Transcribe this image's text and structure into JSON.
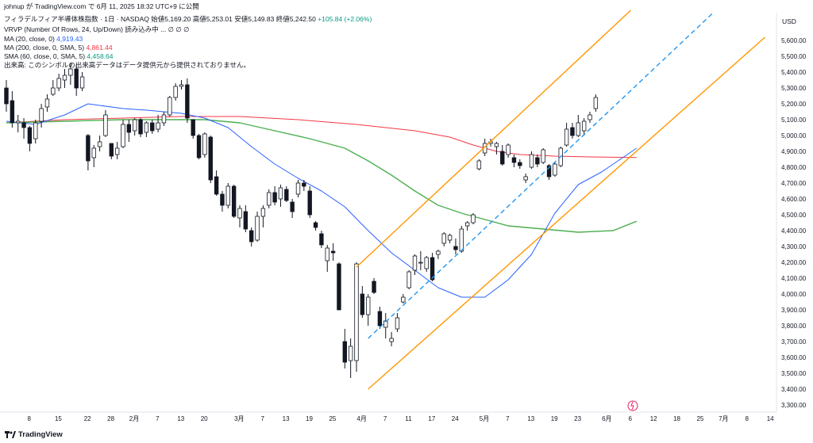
{
  "header": {
    "line1": "johnup が TradingView.com で 6月 11, 2025 18:32 UTC+9 に公開",
    "symbol": "フィラデルフィア半導体株指数 · 1日 · NASDAQ",
    "ohlc_labels": {
      "open": "始値",
      "high": "高値",
      "low": "安値",
      "close": "終値"
    },
    "ohlc_values": {
      "open": "5,169.20",
      "high": "5,253.01",
      "low": "5,149.83",
      "close": "5,242.50",
      "change": "+105.84 (+2.06%)"
    },
    "vrvp": "VRVP (Number Of Rows, 24, Up/Down) 読み込み中 ...  ∅ ∅ ∅",
    "ma20": {
      "label": "MA (20, close, 0)",
      "value": "4,919.43",
      "color": "#2962ff"
    },
    "ma200": {
      "label": "MA (200, close, 0, SMA, 5)",
      "value": "4,861.44",
      "color": "#f23645"
    },
    "sma60": {
      "label": "SMA (60, close, 0, SMA, 5)",
      "value": "4,458.64",
      "color": "#089981"
    },
    "notice": "出来高: このシンボルの出来高データはデータ提供元から提供されておりません。"
  },
  "footer": {
    "brand": "TradingView"
  },
  "chart_data": {
    "type": "candlestick",
    "currency_label": "USD",
    "ylim": [
      3300,
      5700
    ],
    "y_ticks": [
      "3,300.00",
      "3,400.00",
      "3,500.00",
      "3,600.00",
      "3,700.00",
      "3,800.00",
      "3,900.00",
      "4,000.00",
      "4,100.00",
      "4,200.00",
      "4,300.00",
      "4,400.00",
      "4,500.00",
      "4,600.00",
      "4,700.00",
      "4,800.00",
      "4,900.00",
      "5,000.00",
      "5,100.00",
      "5,200.00",
      "5,300.00",
      "5,400.00",
      "5,500.00",
      "5,600.00"
    ],
    "x_ticks": [
      {
        "label": "8",
        "i": 2
      },
      {
        "label": "15",
        "i": 7
      },
      {
        "label": "22",
        "i": 12
      },
      {
        "label": "28",
        "i": 16
      },
      {
        "label": "2月",
        "i": 20
      },
      {
        "label": "7",
        "i": 24
      },
      {
        "label": "13",
        "i": 28
      },
      {
        "label": "20",
        "i": 32
      },
      {
        "label": "3月",
        "i": 38
      },
      {
        "label": "7",
        "i": 42
      },
      {
        "label": "13",
        "i": 46
      },
      {
        "label": "19",
        "i": 50
      },
      {
        "label": "25",
        "i": 54
      },
      {
        "label": "4月",
        "i": 59
      },
      {
        "label": "7",
        "i": 63
      },
      {
        "label": "11",
        "i": 67
      },
      {
        "label": "17",
        "i": 71
      },
      {
        "label": "24",
        "i": 75
      },
      {
        "label": "5月",
        "i": 80
      },
      {
        "label": "7",
        "i": 84
      },
      {
        "label": "13",
        "i": 88
      },
      {
        "label": "19",
        "i": 92
      },
      {
        "label": "23",
        "i": 96
      },
      {
        "label": "6月",
        "i": 101
      },
      {
        "label": "6",
        "i": 105
      },
      {
        "label": "12",
        "i": 109
      },
      {
        "label": "18",
        "i": 113
      },
      {
        "label": "25",
        "i": 117
      },
      {
        "label": "7月",
        "i": 121
      },
      {
        "label": "8",
        "i": 125
      },
      {
        "label": "14",
        "i": 129
      }
    ],
    "candles": [
      [
        5300,
        5350,
        5150,
        5200
      ],
      [
        5220,
        5280,
        5050,
        5080
      ],
      [
        5080,
        5130,
        5020,
        5090
      ],
      [
        5080,
        5110,
        4980,
        5050
      ],
      [
        5050,
        5060,
        4900,
        4950
      ],
      [
        4980,
        5100,
        4950,
        5080
      ],
      [
        5090,
        5200,
        5050,
        5170
      ],
      [
        5180,
        5260,
        5150,
        5230
      ],
      [
        5260,
        5350,
        5250,
        5300
      ],
      [
        5300,
        5390,
        5280,
        5360
      ],
      [
        5350,
        5420,
        5300,
        5380
      ],
      [
        5380,
        5460,
        5320,
        5420
      ],
      [
        5420,
        5450,
        5250,
        5300
      ],
      [
        5300,
        5400,
        5280,
        5370
      ],
      [
        5000,
        5010,
        4780,
        4840
      ],
      [
        4860,
        4940,
        4800,
        4920
      ],
      [
        4930,
        5000,
        4900,
        4960
      ],
      [
        5000,
        5160,
        4990,
        5130
      ],
      [
        4950,
        4950,
        4850,
        4870
      ],
      [
        4880,
        4960,
        4850,
        4920
      ],
      [
        4930,
        5100,
        4920,
        5070
      ],
      [
        5070,
        5100,
        4960,
        5020
      ],
      [
        5030,
        5110,
        5000,
        5100
      ],
      [
        5100,
        5110,
        4990,
        5010
      ],
      [
        5020,
        5090,
        4990,
        5080
      ],
      [
        5080,
        5100,
        5010,
        5030
      ],
      [
        5040,
        5130,
        5020,
        5080
      ],
      [
        5080,
        5150,
        5060,
        5130
      ],
      [
        5130,
        5250,
        5120,
        5240
      ],
      [
        5240,
        5330,
        5220,
        5310
      ],
      [
        5310,
        5350,
        5290,
        5320
      ],
      [
        5320,
        5360,
        5080,
        5110
      ],
      [
        5100,
        5100,
        4980,
        5000
      ],
      [
        5000,
        5010,
        4850,
        4860
      ],
      [
        4880,
        5020,
        4860,
        5010
      ],
      [
        4990,
        5000,
        4700,
        4720
      ],
      [
        4740,
        4780,
        4620,
        4630
      ],
      [
        4630,
        4650,
        4520,
        4560
      ],
      [
        4560,
        4700,
        4540,
        4680
      ],
      [
        4680,
        4690,
        4480,
        4490
      ],
      [
        4480,
        4560,
        4420,
        4540
      ],
      [
        4520,
        4560,
        4390,
        4410
      ],
      [
        4400,
        4420,
        4300,
        4330
      ],
      [
        4340,
        4520,
        4330,
        4490
      ],
      [
        4490,
        4560,
        4420,
        4540
      ],
      [
        4560,
        4660,
        4540,
        4640
      ],
      [
        4640,
        4680,
        4560,
        4580
      ],
      [
        4600,
        4690,
        4550,
        4670
      ],
      [
        4660,
        4680,
        4580,
        4590
      ],
      [
        4580,
        4600,
        4480,
        4520
      ],
      [
        4630,
        4720,
        4610,
        4700
      ],
      [
        4700,
        4720,
        4650,
        4680
      ],
      [
        4650,
        4680,
        4480,
        4500
      ],
      [
        4450,
        4460,
        4400,
        4420
      ],
      [
        4380,
        4400,
        4290,
        4310
      ],
      [
        4210,
        4310,
        4140,
        4290
      ],
      [
        4270,
        4320,
        4210,
        4260
      ],
      [
        4190,
        4200,
        3900,
        3900
      ],
      [
        3700,
        3780,
        3530,
        3570
      ],
      [
        3580,
        3720,
        3470,
        3670
      ],
      [
        3580,
        4200,
        3510,
        4190
      ],
      [
        4000,
        4050,
        3850,
        3870
      ],
      [
        3870,
        4000,
        3800,
        3980
      ],
      [
        4080,
        4100,
        4000,
        4010
      ],
      [
        3890,
        3920,
        3780,
        3800
      ],
      [
        3790,
        3880,
        3720,
        3830
      ],
      [
        3700,
        3760,
        3670,
        3720
      ],
      [
        3780,
        3880,
        3760,
        3850
      ],
      [
        3950,
        4000,
        3940,
        3980
      ],
      [
        4040,
        4150,
        4030,
        4140
      ],
      [
        4150,
        4250,
        4120,
        4240
      ],
      [
        4200,
        4270,
        4150,
        4200
      ],
      [
        4160,
        4240,
        4140,
        4230
      ],
      [
        4230,
        4260,
        4080,
        4090
      ],
      [
        4250,
        4280,
        4220,
        4270
      ],
      [
        4320,
        4390,
        4300,
        4380
      ],
      [
        4340,
        4380,
        4320,
        4370
      ],
      [
        4300,
        4350,
        4250,
        4280
      ],
      [
        4270,
        4430,
        4260,
        4410
      ],
      [
        4430,
        4460,
        4400,
        4450
      ],
      [
        4450,
        4510,
        4440,
        4500
      ],
      [
        4790,
        4850,
        4780,
        4840
      ],
      [
        4890,
        4980,
        4870,
        4950
      ],
      [
        4950,
        4980,
        4930,
        4960
      ],
      [
        4930,
        4960,
        4880,
        4950
      ],
      [
        4900,
        4940,
        4810,
        4820
      ],
      [
        4880,
        4950,
        4860,
        4940
      ],
      [
        4860,
        4880,
        4800,
        4830
      ],
      [
        4830,
        4850,
        4790,
        4810
      ],
      [
        4720,
        4760,
        4700,
        4740
      ],
      [
        4800,
        4900,
        4790,
        4880
      ],
      [
        4860,
        4880,
        4800,
        4820
      ],
      [
        4830,
        4920,
        4820,
        4910
      ],
      [
        4810,
        4820,
        4720,
        4740
      ],
      [
        4750,
        4830,
        4740,
        4820
      ],
      [
        4810,
        4930,
        4800,
        4920
      ],
      [
        4940,
        5080,
        4930,
        5040
      ],
      [
        5050,
        5080,
        4980,
        5000
      ],
      [
        5000,
        5130,
        4990,
        5080
      ],
      [
        5030,
        5110,
        5000,
        5090
      ],
      [
        5100,
        5150,
        5080,
        5130
      ],
      [
        5170,
        5260,
        5150,
        5240
      ]
    ],
    "ma20": [
      [
        0,
        5090
      ],
      [
        5,
        5070
      ],
      [
        10,
        5130
      ],
      [
        14,
        5200
      ],
      [
        20,
        5170
      ],
      [
        24,
        5160
      ],
      [
        30,
        5140
      ],
      [
        34,
        5110
      ],
      [
        38,
        5050
      ],
      [
        42,
        4930
      ],
      [
        46,
        4820
      ],
      [
        50,
        4730
      ],
      [
        54,
        4650
      ],
      [
        58,
        4550
      ],
      [
        62,
        4400
      ],
      [
        66,
        4260
      ],
      [
        70,
        4150
      ],
      [
        74,
        4040
      ],
      [
        78,
        3980
      ],
      [
        82,
        3980
      ],
      [
        86,
        4090
      ],
      [
        90,
        4250
      ],
      [
        94,
        4510
      ],
      [
        98,
        4690
      ],
      [
        102,
        4770
      ],
      [
        106,
        4870
      ],
      [
        108,
        4920
      ]
    ],
    "ma200": [
      [
        0,
        5080
      ],
      [
        10,
        5100
      ],
      [
        20,
        5110
      ],
      [
        30,
        5120
      ],
      [
        40,
        5120
      ],
      [
        50,
        5100
      ],
      [
        60,
        5070
      ],
      [
        70,
        5030
      ],
      [
        76,
        4990
      ],
      [
        80,
        4940
      ],
      [
        84,
        4900
      ],
      [
        88,
        4880
      ],
      [
        94,
        4870
      ],
      [
        100,
        4865
      ],
      [
        108,
        4861
      ]
    ],
    "sma60": [
      [
        0,
        5080
      ],
      [
        10,
        5090
      ],
      [
        20,
        5100
      ],
      [
        28,
        5100
      ],
      [
        34,
        5100
      ],
      [
        40,
        5080
      ],
      [
        46,
        5030
      ],
      [
        52,
        4980
      ],
      [
        58,
        4920
      ],
      [
        62,
        4840
      ],
      [
        66,
        4750
      ],
      [
        70,
        4650
      ],
      [
        74,
        4560
      ],
      [
        78,
        4510
      ],
      [
        82,
        4470
      ],
      [
        86,
        4430
      ],
      [
        92,
        4410
      ],
      [
        98,
        4390
      ],
      [
        104,
        4400
      ],
      [
        108,
        4459
      ]
    ],
    "channel_upper": [
      [
        60,
        4170
      ],
      [
        107,
        5790
      ]
    ],
    "channel_lower": [
      [
        62,
        3400
      ],
      [
        130,
        5620
      ]
    ],
    "channel_mid": [
      [
        62,
        3720
      ],
      [
        121,
        5770
      ]
    ]
  }
}
